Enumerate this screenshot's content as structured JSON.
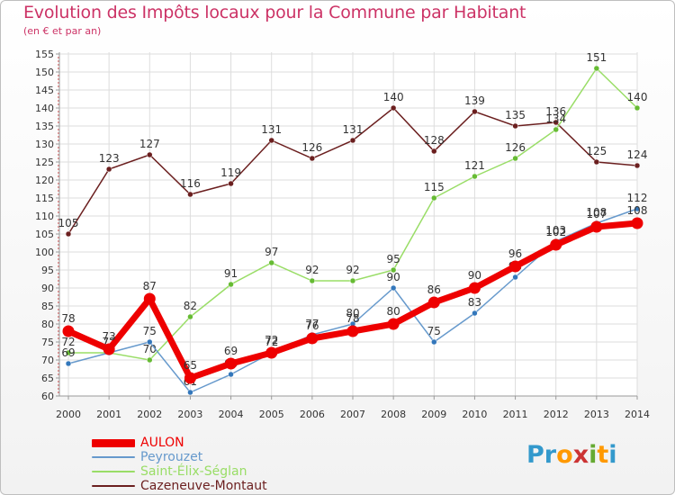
{
  "title": "Evolution des Impôts locaux pour la Commune par Habitant",
  "subtitle": "(en € et par an)",
  "logo": {
    "letters": [
      "P",
      "r",
      "o",
      "x",
      "i",
      "t",
      "i"
    ],
    "colors": [
      "#3399cc",
      "#3399cc",
      "#ff9900",
      "#cc3333",
      "#66aa33",
      "#ff9900",
      "#3399cc"
    ]
  },
  "chart_data": {
    "type": "line",
    "title": "Evolution des Impôts locaux pour la Commune par Habitant",
    "ylabel": "(en € et par an)",
    "x": [
      "2000",
      "2001",
      "2002",
      "2003",
      "2004",
      "2005",
      "2006",
      "2007",
      "2008",
      "2009",
      "2010",
      "2011",
      "2012",
      "2013",
      "2014"
    ],
    "yticks": [
      "60",
      "65",
      "70",
      "75",
      "80",
      "85",
      "90",
      "95",
      "100",
      "105",
      "110",
      "115",
      "120",
      "125",
      "130",
      "135",
      "140",
      "145",
      "150",
      "155"
    ],
    "ylim": [
      60,
      155
    ],
    "grid": true,
    "series": [
      {
        "name": "Cazeneuve-Montaut",
        "color": "#6b1f1f",
        "point_color": "#6b1f1f",
        "emphasis": false,
        "values": [
          105,
          123,
          127,
          116,
          119,
          131,
          126,
          131,
          140,
          128,
          139,
          135,
          136,
          125,
          124
        ],
        "labels": [
          "105",
          "123",
          "127",
          "116",
          "119",
          "131",
          "126",
          "131",
          "140",
          "128",
          "139",
          "135",
          "136",
          "125",
          "124"
        ]
      },
      {
        "name": "Saint-Élix-Séglan",
        "color": "#99dd66",
        "point_color": "#66bb33",
        "emphasis": false,
        "values": [
          72,
          72,
          70,
          82,
          91,
          97,
          92,
          92,
          95,
          115,
          121,
          126,
          134,
          151,
          140
        ],
        "labels": [
          "72",
          "72",
          "70",
          "82",
          "91",
          "97",
          "92",
          "92",
          "95",
          "115",
          "121",
          "126",
          "134",
          "151",
          "140"
        ]
      },
      {
        "name": "Peyrouzet",
        "color": "#6699cc",
        "point_color": "#3377bb",
        "emphasis": false,
        "values": [
          69,
          72,
          75,
          61,
          66,
          72,
          77,
          80,
          90,
          75,
          83,
          93,
          103,
          108,
          112
        ],
        "labels": [
          "69",
          "72",
          "75",
          "61",
          "66",
          "72",
          "77",
          "80",
          "90",
          "75",
          "83",
          "93",
          "103",
          "108",
          "112"
        ]
      },
      {
        "name": "AULON",
        "color": "#ee0000",
        "point_color": "#ee0000",
        "emphasis": true,
        "values": [
          78,
          73,
          87,
          65,
          69,
          72,
          76,
          78,
          80,
          86,
          90,
          96,
          102,
          107,
          108
        ],
        "labels": [
          "78",
          "73",
          "87",
          "65",
          "69",
          "72",
          "76",
          "78",
          "80",
          "86",
          "90",
          "96",
          "102",
          "107",
          "108"
        ]
      }
    ],
    "legend": [
      {
        "name": "AULON",
        "color": "#ee0000",
        "emphasis": true
      },
      {
        "name": "Peyrouzet",
        "color": "#6699cc",
        "emphasis": false
      },
      {
        "name": "Saint-Élix-Séglan",
        "color": "#99dd66",
        "emphasis": false
      },
      {
        "name": "Cazeneuve-Montaut",
        "color": "#6b1f1f",
        "emphasis": false
      }
    ]
  }
}
